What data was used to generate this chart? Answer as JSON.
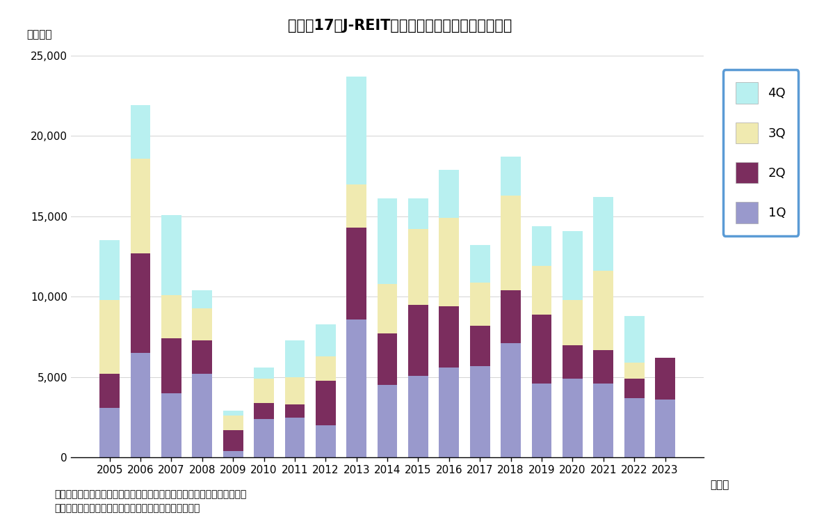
{
  "title": "図表－17　J-REITによる物件取得額（四半期毎）",
  "ylabel": "（億円）",
  "xlabel_suffix": "（年）",
  "years": [
    2005,
    2006,
    2007,
    2008,
    2009,
    2010,
    2011,
    2012,
    2013,
    2014,
    2015,
    2016,
    2017,
    2018,
    2019,
    2020,
    2021,
    2022,
    2023
  ],
  "Q1": [
    3100,
    6500,
    4000,
    5200,
    400,
    2400,
    2500,
    2000,
    8600,
    4500,
    5100,
    5600,
    5700,
    7100,
    4600,
    4900,
    4600,
    3700,
    3600
  ],
  "Q2": [
    2100,
    6200,
    3400,
    2100,
    1300,
    1000,
    800,
    2800,
    5700,
    3200,
    4400,
    3800,
    2500,
    3300,
    4300,
    2100,
    2100,
    1200,
    2600
  ],
  "Q3": [
    4600,
    5900,
    2700,
    2000,
    900,
    1500,
    1700,
    1500,
    2700,
    3100,
    4700,
    5500,
    2700,
    5900,
    3000,
    2800,
    4900,
    1000,
    0
  ],
  "Q4": [
    3700,
    3300,
    5000,
    1100,
    300,
    700,
    2300,
    2000,
    6700,
    5300,
    1900,
    3000,
    2300,
    2400,
    2500,
    4300,
    4600,
    2900,
    0
  ],
  "color_1Q": "#9999cc",
  "color_2Q": "#7b2d5e",
  "color_3Q": "#f0eab0",
  "color_4Q": "#b8f0f0",
  "background_color": "#ffffff",
  "ylim": [
    0,
    25000
  ],
  "yticks": [
    0,
    5000,
    10000,
    15000,
    20000,
    25000
  ],
  "legend_labels": [
    "4Q",
    "3Q",
    "2Q",
    "1Q"
  ],
  "note_line1": "（注）引渡しベース。新規上場以前の取得物件は上場日に取得したと想定",
  "note_line2": "（出所）開示データをもとにニッセイ基礎研究所が作成"
}
